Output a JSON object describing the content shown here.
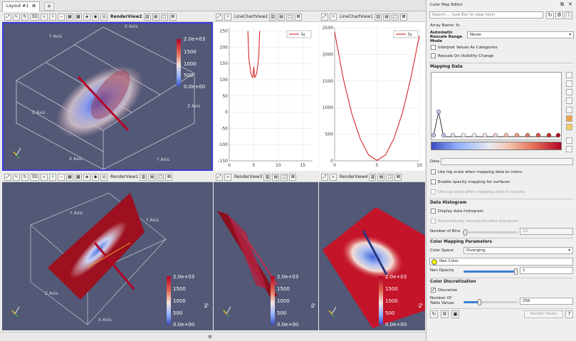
{
  "tabs": {
    "active_label": "Layout #1",
    "add_label": "+"
  },
  "views": {
    "render2": {
      "title": "RenderView2",
      "axes": {
        "x": "X Axis",
        "y": "Y Axis",
        "z": "Z Axis"
      }
    },
    "line2": {
      "title": "LineChartView2"
    },
    "line1": {
      "title": "LineChartView1"
    },
    "render1": {
      "title": "RenderView1"
    },
    "render3": {
      "title": "RenderView3"
    },
    "render4": {
      "title": "RenderView4"
    },
    "threed_label": "3D",
    "colorbar": {
      "labels": [
        "2.0e+03",
        "1500",
        "1000",
        "500",
        "0.0e+00"
      ],
      "array": "fx"
    }
  },
  "chart_data": [
    {
      "type": "line",
      "title": "",
      "series": [
        {
          "name": "fx",
          "x": [
            3.8,
            4.0,
            4.4,
            4.8,
            5.0,
            5.2,
            5.6,
            6.0,
            6.2
          ],
          "values": [
            250,
            165,
            120,
            106,
            140,
            106,
            120,
            165,
            250
          ]
        }
      ],
      "xlim": [
        0,
        17
      ],
      "ylim": [
        -150,
        260
      ],
      "xticks": [
        "0",
        "5",
        "10",
        "15"
      ],
      "yticks": [
        "250",
        "200",
        "150",
        "100",
        "50",
        "0",
        "-50",
        "-100",
        "-150"
      ],
      "legend": "top-right"
    },
    {
      "type": "line",
      "title": "",
      "series": [
        {
          "name": "fx",
          "x": [
            0,
            1,
            2,
            3,
            4,
            5,
            6,
            7,
            8,
            9,
            10
          ],
          "values": [
            2420,
            1560,
            900,
            420,
            110,
            10,
            110,
            420,
            900,
            1560,
            2350
          ]
        }
      ],
      "xlim": [
        0,
        10
      ],
      "ylim": [
        0,
        2500
      ],
      "xticks": [
        "0",
        "5",
        "10"
      ],
      "yticks": [
        "2500",
        "2000",
        "1500",
        "1000",
        "500",
        "0"
      ],
      "legend": "top-right"
    }
  ],
  "panel": {
    "title": "Color Map Editor",
    "search_placeholder": "Search ... (use Esc to clear text)",
    "array_name": "Array Name: fx",
    "auto_rescale_label": "Automatic Rescale Range Mode",
    "auto_rescale_value": "Never",
    "interpret_label": "Interpret Values As Categories",
    "rescale_visibility_label": "Rescale On Visibility Change",
    "mapping_data": "Mapping Data",
    "data_label": "Data",
    "use_log_label": "Use log scale when mapping data to colors",
    "enable_opacity_label": "Enable opacity mapping for surfaces",
    "use_log_opacity_label": "Use log scale when mapping data to opacity",
    "data_histogram": "Data Histogram",
    "display_histogram_label": "Display data histogram",
    "auto_histogram_label": "Automatically recompute data histogram",
    "num_bins_label": "Number of Bins",
    "num_bins_value": "10",
    "color_mapping_params": "Color Mapping Parameters",
    "color_space_label": "Color Space",
    "color_space_value": "Diverging",
    "nan_color_label": "Nan Color",
    "nan_opacity_label": "Nan Opacity",
    "nan_opacity_value": "1",
    "nan_opacity_level": 1.0,
    "color_discretization": "Color Discretization",
    "discretize_label": "Discretize",
    "num_table_values_label": "Number Of Table Values",
    "num_table_values_value": "256",
    "render_views_label": "Render Views",
    "nan_color": "#ffff00"
  }
}
